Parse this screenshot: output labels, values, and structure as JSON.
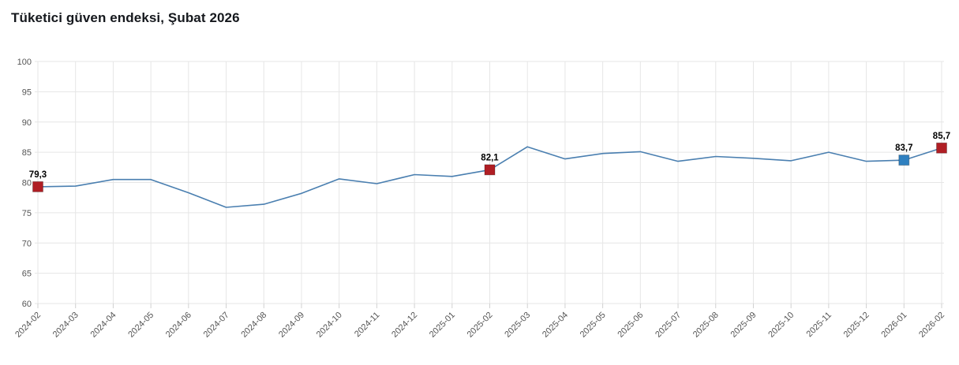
{
  "page": {
    "background": "#ffffff"
  },
  "chart_data": {
    "type": "line",
    "title": "Tüketici güven endeksi, Şubat 2026",
    "xlabel": "",
    "ylabel": "",
    "ylim": [
      60,
      100
    ],
    "ytick_step": 5,
    "grid": true,
    "legend_position": "none",
    "line_color": "#4a7fb0",
    "grid_color": "#e6e6e6",
    "tick_color": "#d0d0d0",
    "axis_label_color": "#555555",
    "point_label_color": "#000000",
    "title_color": "#15181d",
    "categories": [
      "2024-02",
      "2024-03",
      "2024-04",
      "2024-05",
      "2024-06",
      "2024-07",
      "2024-08",
      "2024-09",
      "2024-10",
      "2024-11",
      "2024-12",
      "2025-01",
      "2025-02",
      "2025-03",
      "2025-04",
      "2025-05",
      "2025-06",
      "2025-07",
      "2025-08",
      "2025-09",
      "2025-10",
      "2025-11",
      "2025-12",
      "2026-01",
      "2026-02"
    ],
    "series": [
      {
        "name": "Tüketici güven endeksi",
        "values": [
          79.3,
          79.4,
          80.5,
          80.5,
          78.3,
          75.9,
          76.4,
          78.2,
          80.6,
          79.8,
          81.3,
          81.0,
          82.1,
          85.9,
          83.9,
          84.8,
          85.1,
          83.5,
          84.3,
          84.0,
          83.6,
          85.0,
          83.5,
          83.7,
          85.7
        ]
      }
    ],
    "marked_points": [
      {
        "category": "2024-02",
        "value": 79.3,
        "label": "79,3",
        "color": "#b01e24"
      },
      {
        "category": "2025-02",
        "value": 82.1,
        "label": "82,1",
        "color": "#b01e24"
      },
      {
        "category": "2026-01",
        "value": 83.7,
        "label": "83,7",
        "color": "#2f80c0"
      },
      {
        "category": "2026-02",
        "value": 85.7,
        "label": "85,7",
        "color": "#b01e24"
      }
    ]
  }
}
